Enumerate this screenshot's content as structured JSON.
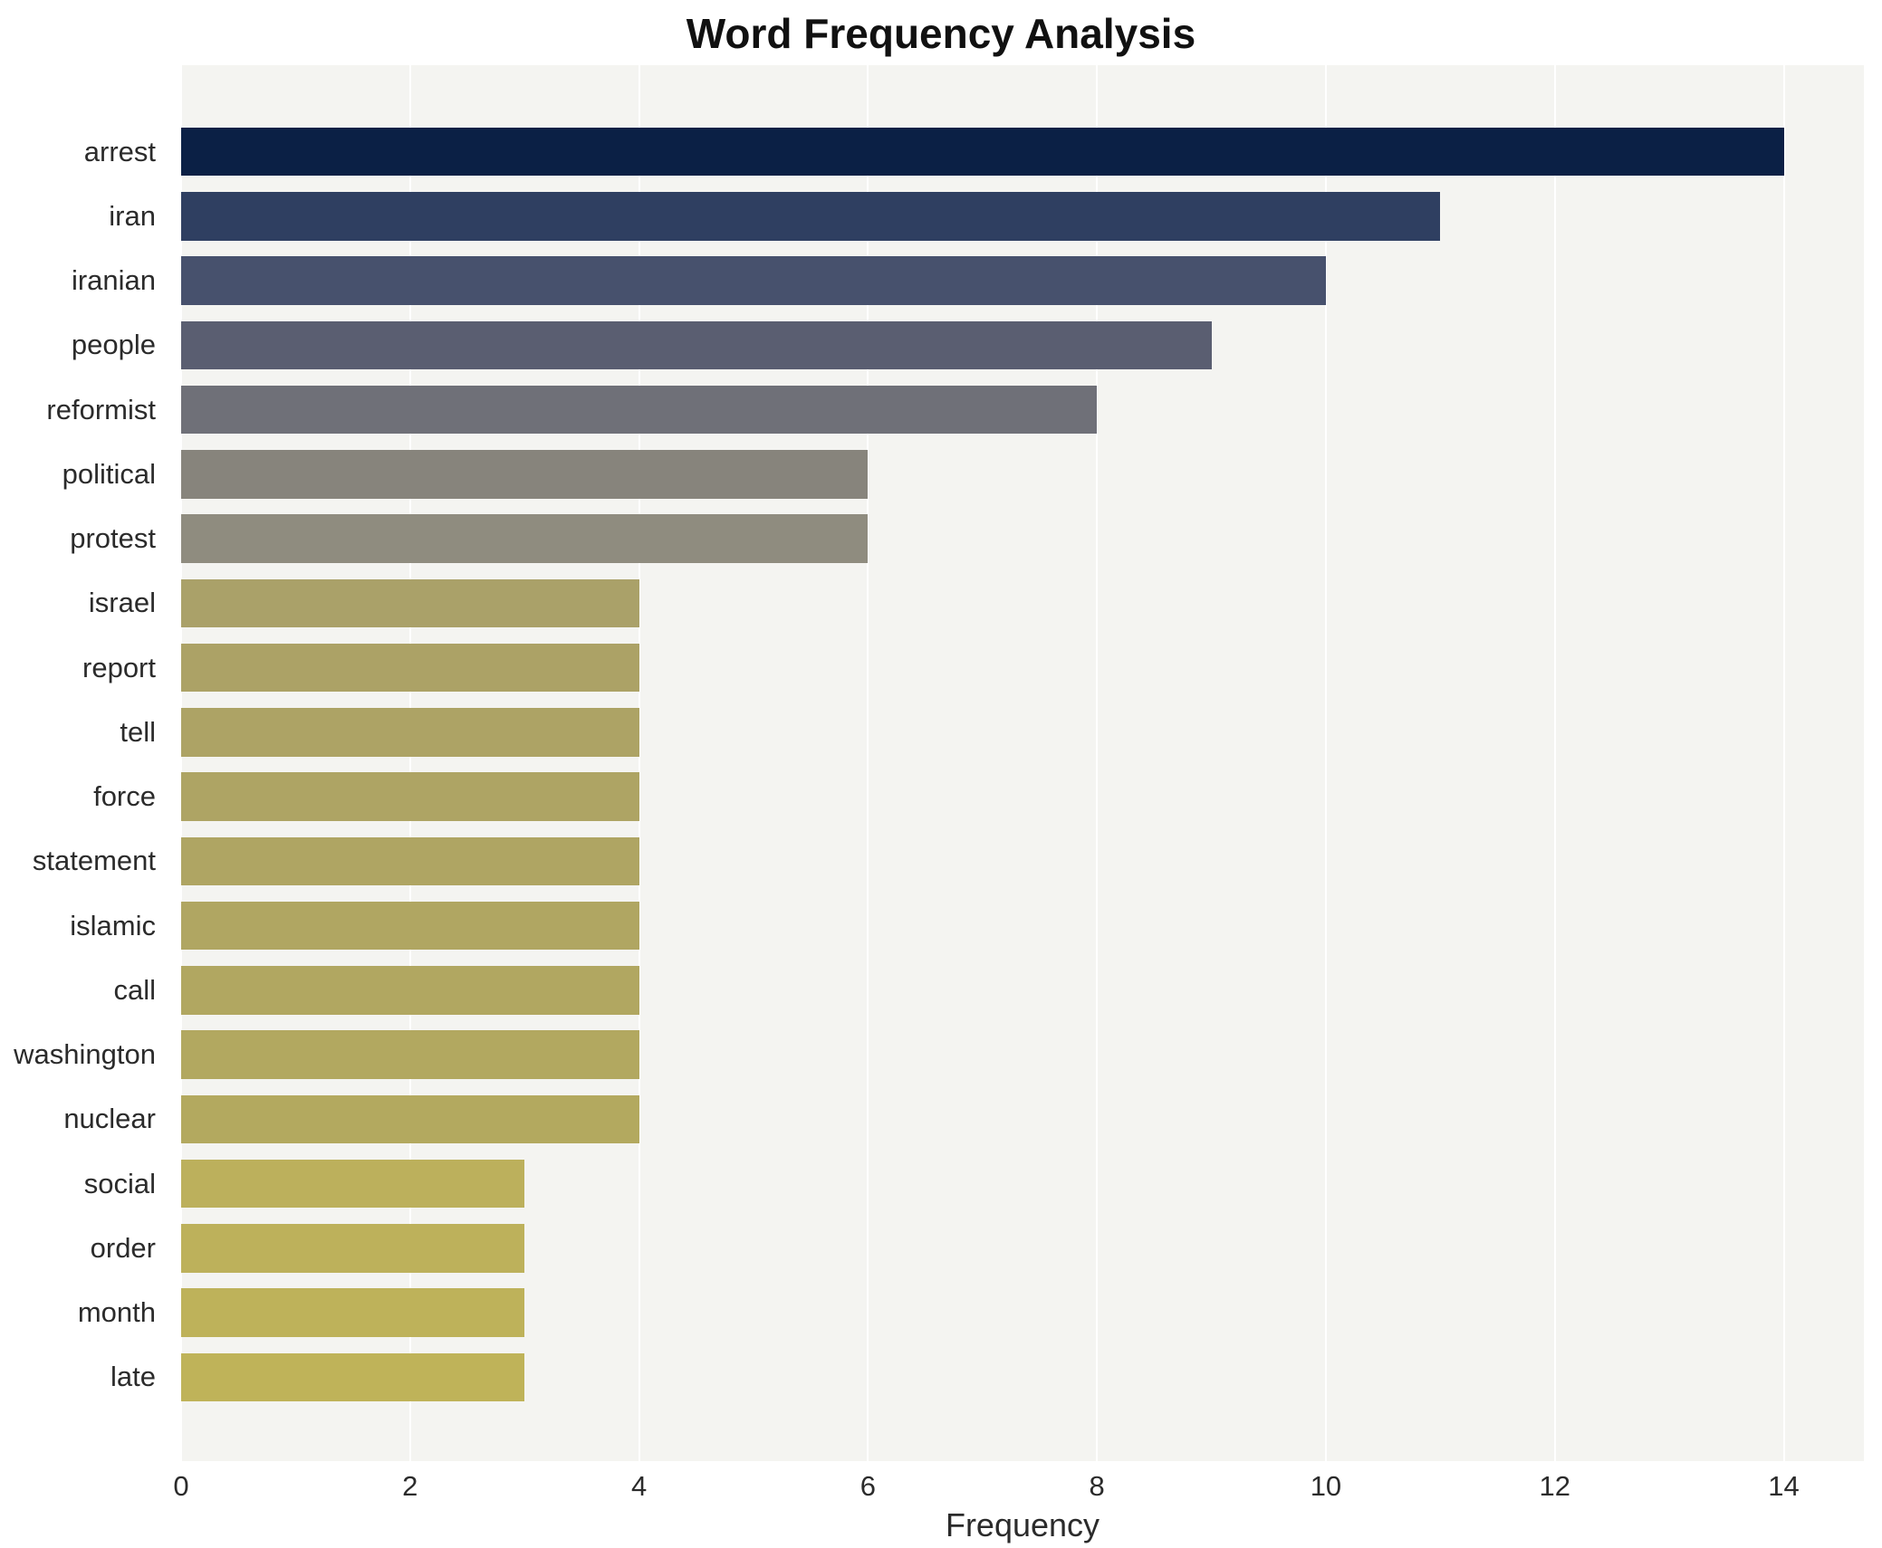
{
  "chart_data": {
    "type": "bar",
    "orientation": "horizontal",
    "title": "Word Frequency Analysis",
    "xlabel": "Frequency",
    "ylabel": "",
    "categories": [
      "arrest",
      "iran",
      "iranian",
      "people",
      "reformist",
      "political",
      "protest",
      "israel",
      "report",
      "tell",
      "force",
      "statement",
      "islamic",
      "call",
      "washington",
      "nuclear",
      "social",
      "order",
      "month",
      "late"
    ],
    "values": [
      14,
      11,
      10,
      9,
      8,
      6,
      6,
      4,
      4,
      4,
      4,
      4,
      4,
      4,
      4,
      4,
      3,
      3,
      3,
      3
    ],
    "bar_colors": [
      "#0b2045",
      "#2f3f61",
      "#47516d",
      "#5a5e71",
      "#6f7078",
      "#87847c",
      "#8f8c7f",
      "#aaa169",
      "#aca266",
      "#ada365",
      "#aea464",
      "#afa563",
      "#b0a662",
      "#b1a761",
      "#b2a860",
      "#b3a95f",
      "#bcb05c",
      "#bdb15b",
      "#beb25a",
      "#bfb359"
    ],
    "xlim": [
      0,
      14.7
    ],
    "xticks": [
      0,
      2,
      4,
      6,
      8,
      10,
      12,
      14
    ],
    "grid": true,
    "legend": "none",
    "plot_bg": "#f4f4f1",
    "background": "#ffffff"
  }
}
